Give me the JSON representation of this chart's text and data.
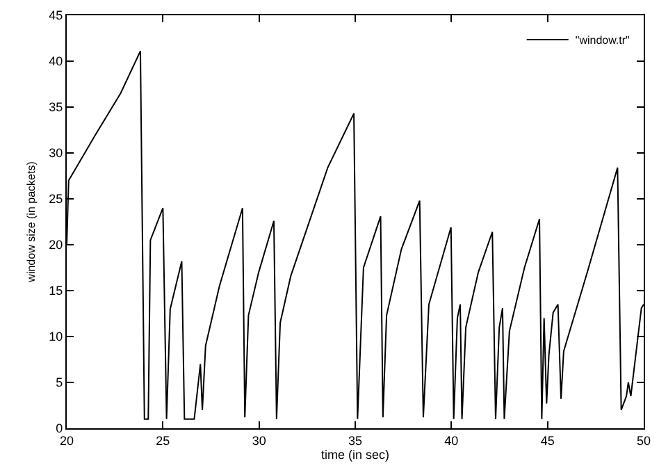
{
  "chart_data": {
    "type": "line",
    "xlabel": "time (in sec)",
    "ylabel": "window size (in packets)",
    "xlim": [
      20,
      50
    ],
    "ylim": [
      0,
      45
    ],
    "xticks": [
      20,
      25,
      30,
      35,
      40,
      45,
      50
    ],
    "yticks": [
      0,
      5,
      10,
      15,
      20,
      25,
      30,
      35,
      40,
      45
    ],
    "legend": "top right",
    "marker": "none",
    "line_style": "solid",
    "series": [
      {
        "name": "\"window.tr\"",
        "color": "#000000",
        "x": [
          20,
          20.1,
          21.5,
          22.8,
          23.83,
          24.04,
          24.24,
          24.35,
          25.0,
          25.19,
          25.38,
          25.98,
          26.12,
          26.63,
          26.87,
          26.95,
          27.05,
          27.22,
          27.94,
          29.14,
          29.26,
          29.45,
          29.98,
          30.77,
          30.91,
          31.1,
          31.65,
          33.57,
          34.93,
          35.12,
          35.43,
          36.32,
          36.44,
          36.63,
          37.4,
          38.35,
          38.54,
          38.83,
          39.98,
          40.12,
          40.31,
          40.46,
          40.55,
          40.75,
          41.4,
          42.13,
          42.3,
          42.49,
          42.66,
          42.75,
          43.02,
          43.8,
          44.58,
          44.7,
          44.82,
          44.95,
          45.07,
          45.29,
          45.54,
          45.7,
          45.84,
          47.08,
          48.64,
          48.83,
          49.1,
          49.2,
          49.33,
          49.88,
          50
        ],
        "values": [
          20,
          27,
          32,
          36.5,
          41.1,
          1,
          1,
          20.5,
          24,
          1,
          13,
          18.2,
          1,
          1,
          5.5,
          7,
          2,
          9,
          15.5,
          24,
          1.2,
          12.3,
          17,
          22.6,
          1,
          11.5,
          16.6,
          28.4,
          34.3,
          1,
          17.5,
          23.1,
          1.2,
          12.3,
          19.5,
          24.8,
          1.2,
          13.5,
          21.9,
          1,
          12,
          13.5,
          1,
          11,
          17,
          21.4,
          1,
          11,
          13.1,
          1,
          10.6,
          17.5,
          22.8,
          1,
          12,
          2.7,
          8,
          12.6,
          13.5,
          3.2,
          8.4,
          17.1,
          28.4,
          2,
          3.5,
          5,
          3.5,
          13.1,
          13.5
        ]
      }
    ]
  }
}
